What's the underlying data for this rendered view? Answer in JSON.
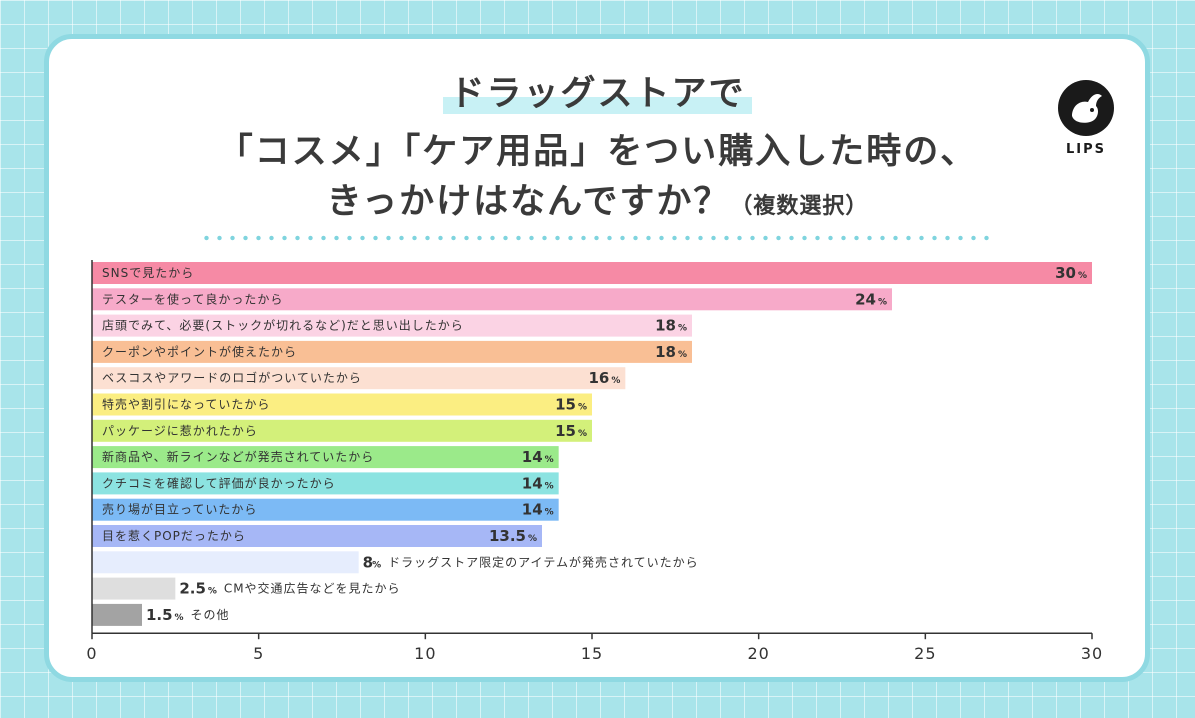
{
  "title": {
    "line1": "ドラッグストアで",
    "line2": "「コスメ」「ケア用品」をつい購入した時の、",
    "line3": "きっかけはなんですか？",
    "note": "（複数選択）"
  },
  "logo": {
    "text": "LIPS",
    "icon": "deer-logo-icon"
  },
  "chart_data": {
    "type": "bar",
    "orientation": "horizontal",
    "unit": "%",
    "xlim": [
      0,
      30
    ],
    "x_ticks": [
      0,
      5,
      10,
      15,
      20,
      25,
      30
    ],
    "grid": false,
    "categories": [
      "SNSで見たから",
      "テスターを使って良かったから",
      "店頭でみて、必要(ストックが切れるなど)だと思い出したから",
      "クーポンやポイントが使えたから",
      "ベスコスやアワードのロゴがついていたから",
      "特売や割引になっていたから",
      "パッケージに惹かれたから",
      "新商品や、新ラインなどが発売されていたから",
      "クチコミを確認して評価が良かったから",
      "売り場が目立っていたから",
      "目を惹くPOPだったから",
      "ドラッグストア限定のアイテムが発売されていたから",
      "CMや交通広告などを見たから",
      "その他"
    ],
    "values": [
      30,
      24,
      18,
      18,
      16,
      15,
      15,
      14,
      14,
      14,
      13.5,
      8,
      2.5,
      1.5
    ],
    "value_labels": [
      "30",
      "24",
      "18",
      "18",
      "16",
      "15",
      "15",
      "14",
      "14",
      "14",
      "13.5",
      "8",
      "2.5",
      "1.5"
    ],
    "colors": [
      "#f68aa5",
      "#f7aac9",
      "#fbd3e4",
      "#f9bf95",
      "#fce0d2",
      "#fbee82",
      "#d3f07a",
      "#9bea8a",
      "#8ce3e1",
      "#7cbaf5",
      "#a6b7f6",
      "#e6edfd",
      "#dedede",
      "#a3a3a3"
    ]
  }
}
